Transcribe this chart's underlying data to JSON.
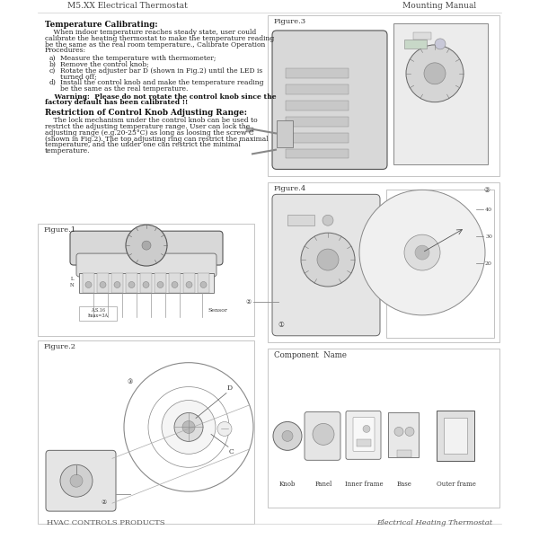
{
  "title_left": "M5.XX Electrical Thermostat",
  "title_right": "Mounting Manual",
  "footer_left": "HVAC CONTROLS PRODUCTS",
  "footer_right": "Electrical Heating Thermostat",
  "section_title": "Temperature Calibrating:",
  "list_labels": [
    "a)",
    "b)",
    "c)",
    "d)"
  ],
  "list_items": [
    [
      "Measure the temperature with thermometer;"
    ],
    [
      "Remove the control knob;"
    ],
    [
      "Rotate the adjuster bar D (shown in Fig.2) until the LED is",
      "turned off;"
    ],
    [
      "Install the control knob and make the temperature reading",
      "be the same as the real temperature."
    ]
  ],
  "warning_lines": [
    "    Warning:  Please do not rotate the control knob since the",
    "factory default has been calibrated !!"
  ],
  "section2_title": "Restriction of Control Knob Adjusting Range:",
  "section2_lines": [
    "    The lock mechanism under the control knob can be used to",
    "restrict the adjusting temperature range. User can lock the",
    "adjusting range (e.g.20-25°C) as long as loosing the screw C",
    "(shown in Fig.2). The top adjusting ring can restrict the maximal",
    "temperature, and the under one can restrict the minimal",
    "temperature."
  ],
  "intro_lines": [
    "    When indoor temperature reaches steady state, user could",
    "calibrate the heating thermostat to make the temperature reading",
    "be the same as the real room temperature., Calibrate Operation",
    "Procedures:"
  ],
  "fig1_label": "Figure.1",
  "fig2_label": "Figure.2",
  "fig3_label": "Figure.3",
  "fig4_label": "Figure.4",
  "component_label": "Component  Name",
  "component_parts": [
    "Knob",
    "Panel",
    "Inner frame",
    "Base",
    "Outer frame"
  ],
  "bg_color": "#ffffff",
  "border_color": "#bbbbbb",
  "text_color": "#222222",
  "gray1": "#dddddd",
  "gray2": "#eeeeee",
  "gray3": "#cccccc",
  "dark_gray": "#555555",
  "mid_gray": "#888888"
}
